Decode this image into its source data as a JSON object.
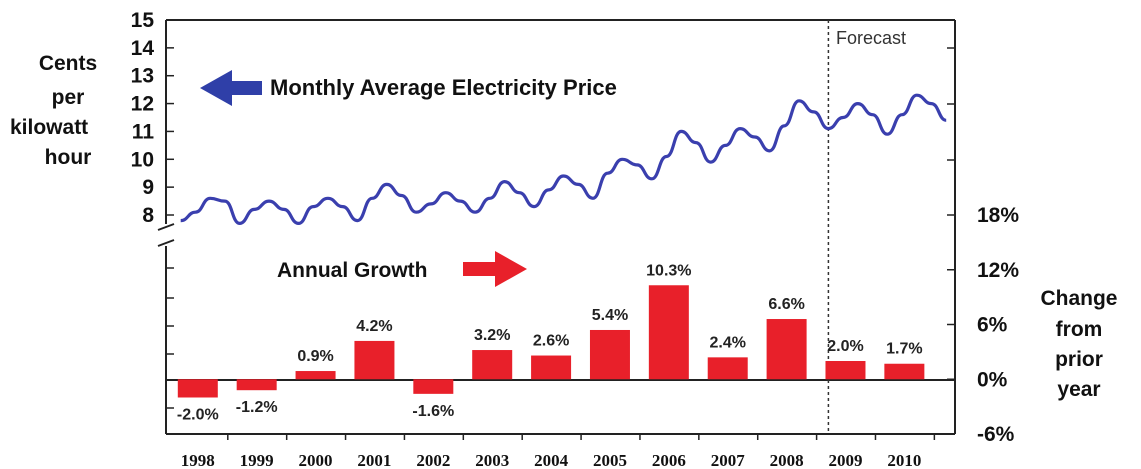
{
  "chart_data": {
    "type": "bar",
    "left_axis_label": [
      "Cents",
      "per",
      "kilowatt",
      "hour"
    ],
    "right_axis_label": [
      "Change",
      "from",
      "prior",
      "year"
    ],
    "left_ticks": [
      "15",
      "14",
      "13",
      "12",
      "11",
      "10",
      "9",
      "8"
    ],
    "right_ticks": [
      "18%",
      "12%",
      "6%",
      "0%",
      "-6%"
    ],
    "forecast_label": "Forecast",
    "forecast_start_year": 2008.75,
    "line_series": {
      "name": "Monthly Average Electricity Price",
      "color": "#3a3fae",
      "ylim": [
        7.5,
        15
      ],
      "x": [
        1997.75,
        1998.0,
        1998.25,
        1998.5,
        1998.75,
        1999.0,
        1999.25,
        1999.5,
        1999.75,
        2000.0,
        2000.25,
        2000.5,
        2000.75,
        2001.0,
        2001.25,
        2001.5,
        2001.75,
        2002.0,
        2002.25,
        2002.5,
        2002.75,
        2003.0,
        2003.25,
        2003.5,
        2003.75,
        2004.0,
        2004.25,
        2004.5,
        2004.75,
        2005.0,
        2005.25,
        2005.5,
        2005.75,
        2006.0,
        2006.25,
        2006.5,
        2006.75,
        2007.0,
        2007.25,
        2007.5,
        2007.75,
        2008.0,
        2008.25,
        2008.5,
        2008.75,
        2009.0,
        2009.25,
        2009.5,
        2009.75,
        2010.0,
        2010.25,
        2010.5,
        2010.75
      ],
      "y": [
        7.8,
        8.1,
        8.6,
        8.5,
        7.7,
        8.2,
        8.5,
        8.2,
        7.7,
        8.3,
        8.6,
        8.3,
        7.8,
        8.6,
        9.1,
        8.7,
        8.1,
        8.4,
        8.8,
        8.5,
        8.1,
        8.6,
        9.2,
        8.8,
        8.3,
        8.9,
        9.4,
        9.1,
        8.6,
        9.5,
        10.0,
        9.8,
        9.3,
        10.1,
        11.0,
        10.6,
        9.9,
        10.5,
        11.1,
        10.8,
        10.3,
        11.2,
        12.1,
        11.7,
        11.1,
        11.5,
        12.0,
        11.6,
        10.9,
        11.6,
        12.3,
        12.0,
        11.4
      ]
    },
    "bar_series": {
      "name": "Annual Growth",
      "color": "#e8202a",
      "ylim": [
        -6,
        18
      ],
      "categories": [
        "1998",
        "1999",
        "2000",
        "2001",
        "2002",
        "2003",
        "2004",
        "2005",
        "2006",
        "2007",
        "2008",
        "2009",
        "2010"
      ],
      "values": [
        -2.0,
        -1.2,
        0.9,
        4.2,
        -1.6,
        3.2,
        2.6,
        5.4,
        10.3,
        2.4,
        6.6,
        2.0,
        1.7
      ],
      "labels": [
        "-2.0%",
        "-1.2%",
        "0.9%",
        "4.2%",
        "-1.6%",
        "3.2%",
        "2.6%",
        "5.4%",
        "10.3%",
        "2.4%",
        "6.6%",
        "2.0%",
        "1.7%"
      ]
    },
    "annotations": {
      "line_label": "Monthly Average Electricity Price",
      "bar_label": "Annual Growth",
      "line_arrow_color": "#2f3fa8",
      "bar_arrow_color": "#e8202a"
    }
  }
}
